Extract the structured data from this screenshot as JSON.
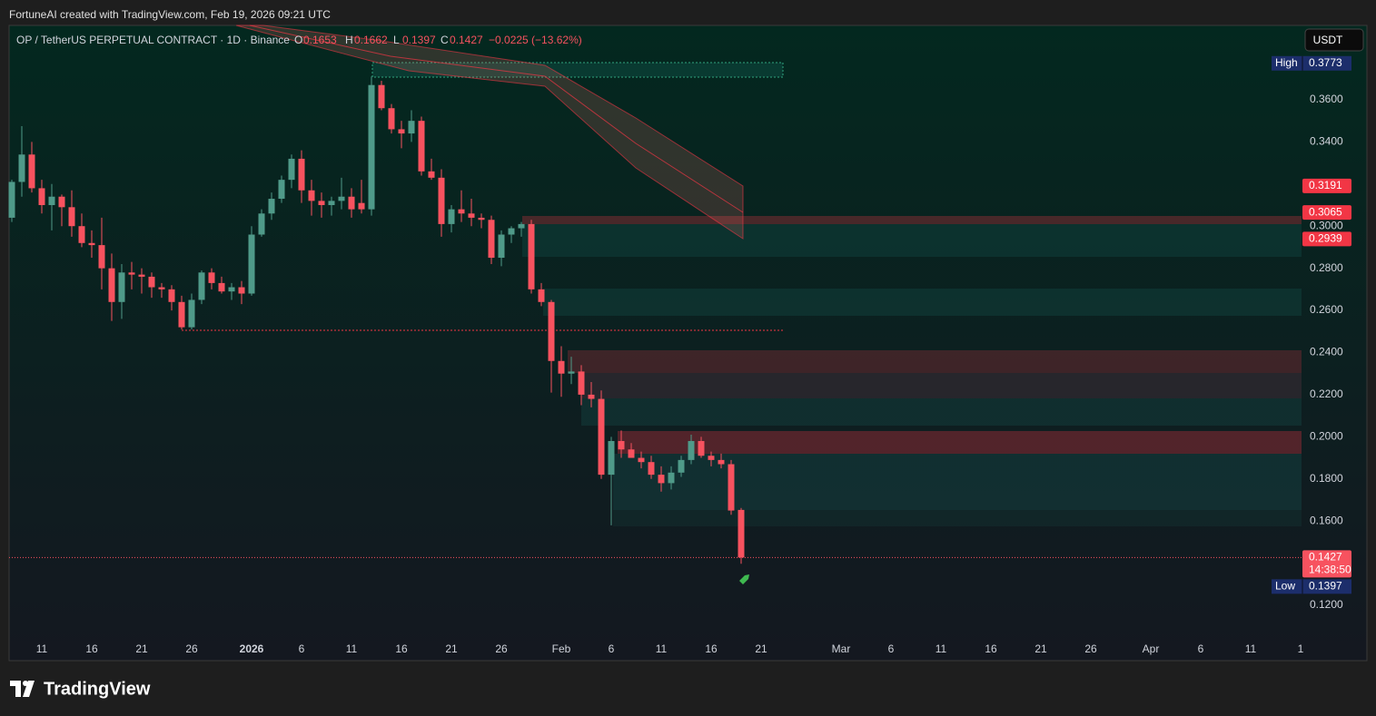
{
  "attribution": "FortuneAI created with TradingView.com, Feb 19, 2026 09:21 UTC",
  "logo": "TradingView",
  "currency": "USDT",
  "chart_data": {
    "type": "candlestick",
    "symbol": "OP / TetherUS PERPETUAL CONTRACT · 1D · Binance",
    "ohlc_labels": [
      "O",
      "H",
      "L",
      "C"
    ],
    "change": "−0.0225 (−13.62%)",
    "up_color": "#4f9a89",
    "down_color": "#f7525f",
    "categories": [
      null,
      null,
      null,
      "11",
      null,
      null,
      null,
      null,
      "16",
      null,
      null,
      null,
      null,
      "21",
      null,
      null,
      null,
      null,
      "26",
      null,
      null,
      null,
      null,
      null,
      "2026",
      null,
      null,
      null,
      null,
      "6",
      null,
      null,
      null,
      null,
      "11",
      null,
      null,
      null,
      null,
      "16",
      null,
      null,
      null,
      null,
      "21",
      null,
      null,
      null,
      null,
      "26",
      null,
      null,
      null,
      null,
      null,
      "Feb",
      null,
      null,
      null,
      null,
      "6",
      null,
      null,
      null,
      null,
      "11",
      null,
      null,
      null,
      null,
      "16",
      null,
      null,
      null,
      null,
      "21",
      null,
      null,
      null,
      null,
      null,
      null,
      null,
      "Mar",
      null,
      null,
      null,
      null,
      "6",
      null,
      null,
      null,
      null,
      "11",
      null,
      null,
      null,
      null,
      "16",
      null,
      null,
      null,
      null,
      "21",
      null,
      null,
      null,
      null,
      "26",
      null,
      null,
      null,
      null,
      null,
      "Apr",
      null,
      null,
      null,
      null,
      "6",
      null,
      null,
      null,
      null,
      "11",
      null,
      null,
      null,
      null,
      "1"
    ],
    "open": [
      0.304,
      0.321,
      0.334,
      0.318,
      0.31,
      0.314,
      0.309,
      0.3,
      0.292,
      0.291,
      0.28,
      0.264,
      0.278,
      0.277,
      0.276,
      0.271,
      0.27,
      0.264,
      0.252,
      0.265,
      0.278,
      0.273,
      0.269,
      0.271,
      0.268,
      0.296,
      0.306,
      0.313,
      0.322,
      0.332,
      0.317,
      0.312,
      0.31,
      0.312,
      0.314,
      0.311,
      0.308,
      0.367,
      0.356,
      0.346,
      0.344,
      0.35,
      0.326,
      0.323,
      0.301,
      0.308,
      0.306,
      0.304,
      0.303,
      0.285,
      0.296,
      0.299,
      0.301,
      0.27,
      0.264,
      0.236,
      0.23,
      0.231,
      0.22,
      0.218,
      0.182,
      0.198,
      0.194,
      0.19,
      0.188,
      0.182,
      0.178,
      0.183,
      0.189,
      0.198,
      0.191,
      0.189,
      0.187,
      0.1653,
      null,
      null,
      null,
      null,
      null,
      null,
      null,
      null,
      null,
      null,
      null,
      null,
      null,
      null,
      null,
      null,
      null,
      null,
      null,
      null,
      null,
      null,
      null,
      null,
      null,
      null,
      null,
      null,
      null,
      null,
      null,
      null,
      null,
      null,
      null,
      null,
      null,
      null,
      null,
      null,
      null,
      null,
      null,
      null,
      null,
      null,
      null,
      null,
      null,
      null,
      null,
      null,
      null,
      null,
      null,
      null
    ],
    "high": [
      0.322,
      0.3475,
      0.34,
      0.322,
      0.32,
      0.315,
      0.317,
      0.306,
      0.298,
      0.304,
      0.287,
      0.282,
      0.283,
      0.28,
      0.278,
      0.273,
      0.272,
      0.267,
      0.268,
      0.279,
      0.28,
      0.276,
      0.273,
      0.274,
      0.3,
      0.308,
      0.316,
      0.324,
      0.334,
      0.336,
      0.322,
      0.316,
      0.314,
      0.323,
      0.318,
      0.322,
      0.371,
      0.369,
      0.358,
      0.35,
      0.355,
      0.352,
      0.332,
      0.327,
      0.31,
      0.317,
      0.313,
      0.306,
      0.305,
      0.298,
      0.3,
      0.302,
      0.303,
      0.273,
      0.265,
      0.243,
      0.238,
      0.234,
      0.226,
      0.222,
      0.2,
      0.203,
      0.197,
      0.193,
      0.191,
      0.186,
      0.186,
      0.191,
      0.201,
      0.2,
      0.193,
      0.192,
      0.189,
      0.1662,
      null,
      null,
      null,
      null,
      null,
      null,
      null,
      null,
      null,
      null,
      null,
      null,
      null,
      null,
      null,
      null,
      null,
      null,
      null,
      null,
      null,
      null,
      null,
      null,
      null,
      null,
      null,
      null,
      null,
      null,
      null,
      null,
      null,
      null,
      null,
      null,
      null,
      null,
      null,
      null,
      null,
      null,
      null,
      null,
      null,
      null,
      null,
      null,
      null,
      null,
      null,
      null,
      null,
      null,
      null,
      null
    ],
    "low": [
      0.302,
      0.314,
      0.316,
      0.306,
      0.298,
      0.3,
      0.295,
      0.29,
      0.285,
      0.27,
      0.255,
      0.256,
      0.27,
      0.268,
      0.266,
      0.266,
      0.26,
      0.251,
      0.251,
      0.263,
      0.27,
      0.268,
      0.265,
      0.263,
      0.267,
      0.295,
      0.303,
      0.311,
      0.318,
      0.311,
      0.305,
      0.304,
      0.305,
      0.308,
      0.304,
      0.306,
      0.305,
      0.355,
      0.344,
      0.337,
      0.34,
      0.324,
      0.322,
      0.295,
      0.297,
      0.302,
      0.3,
      0.299,
      0.282,
      0.281,
      0.292,
      0.295,
      0.268,
      0.262,
      0.221,
      0.219,
      0.225,
      0.215,
      0.214,
      0.18,
      0.158,
      0.19,
      0.19,
      0.185,
      0.18,
      0.174,
      0.175,
      0.181,
      0.187,
      0.19,
      0.186,
      0.185,
      0.163,
      0.1397,
      null,
      null,
      null,
      null,
      null,
      null,
      null,
      null,
      null,
      null,
      null,
      null,
      null,
      null,
      null,
      null,
      null,
      null,
      null,
      null,
      null,
      null,
      null,
      null,
      null,
      null,
      null,
      null,
      null,
      null,
      null,
      null,
      null,
      null,
      null,
      null,
      null,
      null,
      null,
      null,
      null,
      null,
      null,
      null,
      null,
      null,
      null,
      null,
      null,
      null,
      null,
      null,
      null,
      null,
      null,
      null
    ],
    "close": [
      0.321,
      0.334,
      0.318,
      0.31,
      0.314,
      0.309,
      0.3,
      0.292,
      0.291,
      0.28,
      0.264,
      0.278,
      0.277,
      0.276,
      0.271,
      0.27,
      0.264,
      0.252,
      0.265,
      0.278,
      0.273,
      0.269,
      0.271,
      0.268,
      0.296,
      0.306,
      0.313,
      0.322,
      0.332,
      0.317,
      0.312,
      0.31,
      0.312,
      0.314,
      0.308,
      0.308,
      0.367,
      0.356,
      0.346,
      0.344,
      0.35,
      0.326,
      0.323,
      0.301,
      0.308,
      0.306,
      0.304,
      0.303,
      0.285,
      0.296,
      0.299,
      0.301,
      0.27,
      0.264,
      0.236,
      0.23,
      0.231,
      0.22,
      0.218,
      0.182,
      0.198,
      0.194,
      0.19,
      0.188,
      0.182,
      0.178,
      0.183,
      0.189,
      0.198,
      0.191,
      0.189,
      0.187,
      0.165,
      0.1427,
      null,
      null,
      null,
      null,
      null,
      null,
      null,
      null,
      null,
      null,
      null,
      null,
      null,
      null,
      null,
      null,
      null,
      null,
      null,
      null,
      null,
      null,
      null,
      null,
      null,
      null,
      null,
      null,
      null,
      null,
      null,
      null,
      null,
      null,
      null,
      null,
      null,
      null,
      null,
      null,
      null,
      null,
      null,
      null,
      null,
      null,
      null,
      null,
      null,
      null,
      null,
      null,
      null,
      null,
      null,
      null
    ],
    "ylim": [
      0.1058,
      0.3953
    ],
    "yticks": [
      {
        "value": 0.12,
        "label": "0.1200"
      },
      {
        "value": 0.16,
        "label": "0.1600"
      },
      {
        "value": 0.18,
        "label": "0.1800"
      },
      {
        "value": 0.2,
        "label": "0.2000"
      },
      {
        "value": 0.22,
        "label": "0.2200"
      },
      {
        "value": 0.24,
        "label": "0.2400"
      },
      {
        "value": 0.26,
        "label": "0.2600"
      },
      {
        "value": 0.28,
        "label": "0.2800"
      },
      {
        "value": 0.3,
        "label": "0.3000"
      },
      {
        "value": 0.34,
        "label": "0.3400"
      },
      {
        "value": 0.36,
        "label": "0.3600"
      }
    ],
    "price_labels": [
      {
        "tag": "High",
        "value": 0.3773,
        "color": "#1c2e6b"
      },
      {
        "value": 0.3191,
        "color": "#f23645"
      },
      {
        "value": 0.3065,
        "color": "#f23645"
      },
      {
        "value": 0.2939,
        "color": "#f23645"
      },
      {
        "value": 0.1427,
        "sub": "14:38:50",
        "color": "#f7525f"
      },
      {
        "tag": "Low",
        "value": 0.1397,
        "color": "#1c2e6b"
      }
    ]
  }
}
